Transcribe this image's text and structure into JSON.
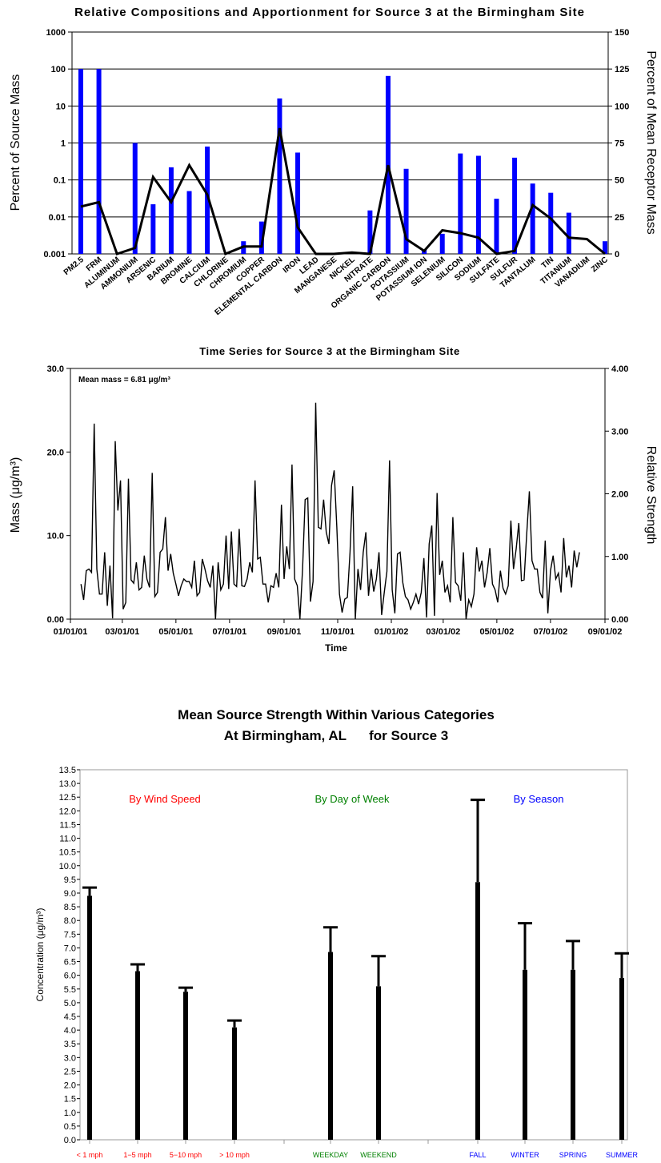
{
  "colors": {
    "bar_blue": "#0000ff",
    "wind": "#ff0000",
    "dow": "#008000",
    "season": "#0000ff",
    "grid": "#000000"
  },
  "chart_data": [
    {
      "type": "bar",
      "title": "Relative Compositions and Apportionment for Source 3 at the Birmingham Site",
      "ylabel": "Percent of Source Mass",
      "y2label": "Percent of Mean Receptor Mass",
      "yscale": "log",
      "ylim": [
        0.001,
        1000
      ],
      "yticks": [
        "0.001",
        "0.01",
        "0.1",
        "1",
        "10",
        "100",
        "1000"
      ],
      "y2lim": [
        0,
        150
      ],
      "y2ticks": [
        "0",
        "25",
        "50",
        "75",
        "100",
        "125",
        "150"
      ],
      "grid": true,
      "categories": [
        "PM2.5",
        "FRM",
        "ALUMINUM",
        "AMMONIUM",
        "ARSENIC",
        "BARIUM",
        "BROMINE",
        "CALCIUM",
        "CHLORINE",
        "CHROMIUM",
        "COPPER",
        "ELEMENTAL CARBON",
        "IRON",
        "LEAD",
        "MANGANESE",
        "NICKEL",
        "NITRATE",
        "ORGANIC CARBON",
        "POTASSIUM",
        "POTASSIUM ION",
        "SELENIUM",
        "SILICON",
        "SODIUM",
        "SULFATE",
        "SULFUR",
        "TANTALUM",
        "TIN",
        "TITANIUM",
        "VANADIUM",
        "ZINC"
      ],
      "series": [
        {
          "type": "bar",
          "axis": "left",
          "values": [
            100,
            100,
            0.001,
            1.0,
            0.022,
            0.22,
            0.05,
            0.8,
            0.001,
            0.0022,
            0.0075,
            16,
            0.55,
            0.001,
            0.001,
            0.001,
            0.015,
            65,
            0.2,
            0.0013,
            0.0035,
            0.52,
            0.45,
            0.031,
            0.4,
            0.08,
            0.045,
            0.013,
            0.001,
            0.0022
          ]
        },
        {
          "type": "line",
          "axis": "right",
          "values": [
            32,
            35,
            0,
            4,
            52,
            35,
            60,
            40,
            0,
            5,
            5,
            85,
            18,
            0,
            0,
            1,
            0,
            60,
            10,
            2,
            16,
            14,
            11,
            0,
            2,
            33,
            24,
            11,
            10,
            0
          ]
        }
      ]
    },
    {
      "type": "line",
      "title": "Time Series for Source 3 at the Birmingham Site",
      "xlabel": "Time",
      "ylabel": "Mass (μg/m³)",
      "y2label": "Relative Strength",
      "annotation": "Mean mass = 6.81 μg/m³",
      "ylim": [
        0,
        30
      ],
      "yticks": [
        "0.00",
        "10.0",
        "20.0",
        "30.0"
      ],
      "y2lim": [
        0,
        4
      ],
      "y2ticks": [
        "0.00",
        "1.00",
        "2.00",
        "3.00",
        "4.00"
      ],
      "xlim": [
        "2001-01-01",
        "2002-09-01"
      ],
      "xticks": [
        "01/01/01",
        "03/01/01",
        "05/01/01",
        "07/01/01",
        "09/01/01",
        "11/01/01",
        "01/01/02",
        "03/01/02",
        "05/01/02",
        "07/01/02",
        "09/01/02"
      ],
      "series": [
        {
          "name": "",
          "start": "2001-01-13",
          "step_days": 3,
          "values": [
            4.2,
            2.3,
            5.8,
            6.0,
            5.6,
            23.4,
            6.0,
            3.0,
            3.0,
            8.0,
            1.6,
            6.4,
            0.1,
            21.3,
            13.0,
            16.6,
            1.2,
            2.0,
            16.8,
            4.7,
            4.3,
            6.8,
            3.5,
            3.8,
            7.6,
            4.8,
            3.8,
            17.5,
            2.7,
            3.2,
            8.0,
            8.4,
            12.2,
            5.8,
            7.8,
            5.5,
            4.2,
            2.8,
            4.0,
            4.8,
            4.5,
            4.5,
            3.8,
            7.0,
            2.8,
            3.2,
            7.2,
            6.0,
            4.6,
            3.8,
            6.4,
            0.0,
            6.8,
            3.5,
            4.2,
            10.0,
            3.6,
            10.5,
            4.2,
            3.9,
            10.8,
            4.0,
            3.9,
            4.8,
            6.8,
            5.6,
            16.6,
            7.2,
            7.4,
            4.2,
            4.2,
            2.0,
            4.0,
            3.8,
            5.5,
            3.8,
            13.7,
            4.8,
            8.7,
            6.0,
            18.5,
            4.8,
            4.0,
            0.0,
            6.0,
            14.3,
            14.5,
            2.1,
            4.5,
            25.9,
            11.0,
            10.8,
            14.3,
            10.4,
            9.0,
            16.0,
            17.8,
            11.0,
            3.0,
            0.8,
            2.4,
            2.6,
            8.0,
            15.9,
            0.0,
            6.0,
            3.5,
            8.0,
            10.4,
            2.8,
            6.0,
            3.3,
            4.8,
            8.0,
            0.5,
            3.2,
            5.7,
            19.0,
            3.5,
            0.7,
            7.8,
            8.0,
            4.4,
            2.7,
            2.3,
            1.2,
            2.0,
            3.0,
            1.8,
            3.2,
            7.3,
            0.2,
            9.0,
            11.2,
            0.4,
            15.1,
            5.3,
            7.0,
            3.2,
            4.0,
            2.0,
            12.2,
            4.4,
            4.0,
            2.2,
            8.0,
            0.0,
            2.3,
            1.5,
            3.0,
            8.6,
            5.7,
            7.0,
            3.8,
            5.6,
            8.5,
            4.2,
            3.5,
            2.0,
            5.8,
            3.7,
            3.0,
            4.0,
            11.8,
            6.0,
            8.4,
            11.5,
            4.6,
            4.7,
            10.2,
            15.3,
            7.0,
            6.0,
            6.0,
            3.2,
            2.5,
            9.4,
            0.7,
            5.8,
            7.6,
            4.8,
            5.5,
            3.2,
            9.7,
            5.0,
            6.4,
            3.8,
            8.2,
            6.2,
            8.0
          ]
        }
      ]
    },
    {
      "type": "bar",
      "title": "Mean Source Strength Within Various Categories",
      "subtitle": "At Birmingham, AL      for Source 3",
      "ylabel": "Concentration (μg/m³)",
      "ylim": [
        0,
        13.5
      ],
      "yticks": [
        "0.0",
        "0.5",
        "1.0",
        "1.5",
        "2.0",
        "2.5",
        "3.0",
        "3.5",
        "4.0",
        "4.5",
        "5.0",
        "5.5",
        "6.0",
        "6.5",
        "7.0",
        "7.5",
        "8.0",
        "8.5",
        "9.0",
        "9.5",
        "10.0",
        "10.5",
        "11.0",
        "11.5",
        "12.0",
        "12.5",
        "13.0",
        "13.5"
      ],
      "groups": [
        {
          "label": "By Wind Speed",
          "color": "#ff0000",
          "categories": [
            "< 1 mph",
            "1−5 mph",
            "5−10 mph",
            "> 10 mph"
          ],
          "values": [
            8.9,
            6.15,
            5.4,
            4.1
          ],
          "upper": [
            9.2,
            6.4,
            5.55,
            4.35
          ]
        },
        {
          "label": "By Day of Week",
          "color": "#008000",
          "categories": [
            "WEEKDAY",
            "WEEKEND"
          ],
          "values": [
            6.85,
            5.6
          ],
          "upper": [
            7.75,
            6.7
          ]
        },
        {
          "label": "By Season",
          "color": "#0000ff",
          "categories": [
            "FALL",
            "WINTER",
            "SPRING",
            "SUMMER"
          ],
          "values": [
            9.4,
            6.2,
            6.2,
            5.9
          ],
          "upper": [
            12.4,
            7.9,
            7.25,
            6.8
          ]
        }
      ]
    }
  ]
}
